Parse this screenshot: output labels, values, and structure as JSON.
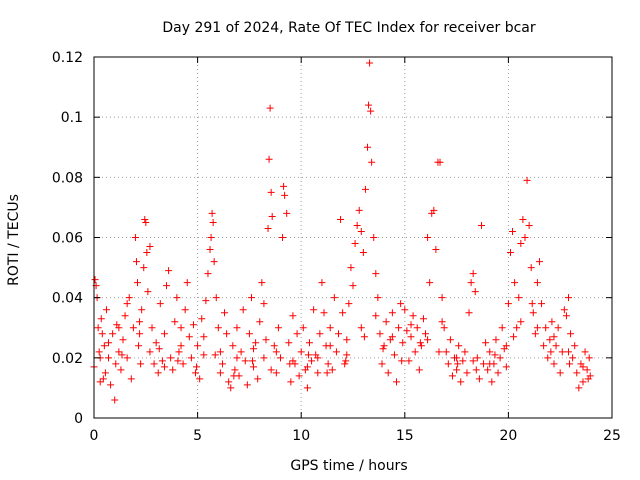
{
  "chart_data": {
    "type": "scatter",
    "title": "Day 291 of 2024, Rate Of TEC Index for receiver bcar",
    "xlabel": "GPS time / hours",
    "ylabel": "ROTI / TECUs",
    "xlim": [
      0,
      25
    ],
    "ylim": [
      0,
      0.12
    ],
    "xticks": [
      0,
      5,
      10,
      15,
      20,
      25
    ],
    "xtick_labels": [
      "0",
      "5",
      "10",
      "15",
      "20",
      "25"
    ],
    "yticks": [
      0,
      0.02,
      0.04,
      0.06,
      0.08,
      0.1,
      0.12
    ],
    "ytick_labels": [
      "0",
      "0.02",
      "0.04",
      "0.06",
      "0.08",
      "0.1",
      "0.12"
    ],
    "grid": true,
    "marker": "plus",
    "point_color": "#ff0000",
    "points": [
      [
        0.0,
        0.017
      ],
      [
        0.05,
        0.046
      ],
      [
        0.1,
        0.044
      ],
      [
        0.15,
        0.04
      ],
      [
        0.2,
        0.03
      ],
      [
        0.25,
        0.022
      ],
      [
        0.3,
        0.012
      ],
      [
        0.35,
        0.033
      ],
      [
        0.4,
        0.028
      ],
      [
        0.5,
        0.024
      ],
      [
        0.55,
        0.015
      ],
      [
        0.6,
        0.036
      ],
      [
        0.7,
        0.02
      ],
      [
        0.8,
        0.011
      ],
      [
        0.9,
        0.028
      ],
      [
        1.0,
        0.006
      ],
      [
        1.05,
        0.018
      ],
      [
        1.1,
        0.031
      ],
      [
        1.2,
        0.022
      ],
      [
        1.3,
        0.016
      ],
      [
        1.4,
        0.026
      ],
      [
        1.5,
        0.034
      ],
      [
        1.6,
        0.02
      ],
      [
        1.7,
        0.04
      ],
      [
        1.8,
        0.013
      ],
      [
        1.9,
        0.03
      ],
      [
        2.0,
        0.06
      ],
      [
        2.05,
        0.052
      ],
      [
        2.1,
        0.045
      ],
      [
        2.15,
        0.024
      ],
      [
        2.2,
        0.032
      ],
      [
        2.3,
        0.036
      ],
      [
        2.4,
        0.05
      ],
      [
        2.45,
        0.066
      ],
      [
        2.5,
        0.065
      ],
      [
        2.55,
        0.055
      ],
      [
        2.6,
        0.042
      ],
      [
        2.7,
        0.057
      ],
      [
        2.8,
        0.03
      ],
      [
        2.9,
        0.018
      ],
      [
        3.0,
        0.025
      ],
      [
        3.1,
        0.015
      ],
      [
        3.2,
        0.038
      ],
      [
        3.3,
        0.019
      ],
      [
        3.4,
        0.028
      ],
      [
        3.5,
        0.044
      ],
      [
        3.6,
        0.049
      ],
      [
        3.7,
        0.02
      ],
      [
        3.8,
        0.016
      ],
      [
        3.9,
        0.032
      ],
      [
        4.0,
        0.04
      ],
      [
        4.1,
        0.022
      ],
      [
        4.2,
        0.03
      ],
      [
        4.3,
        0.018
      ],
      [
        4.4,
        0.036
      ],
      [
        4.5,
        0.045
      ],
      [
        4.6,
        0.027
      ],
      [
        4.7,
        0.02
      ],
      [
        4.8,
        0.031
      ],
      [
        4.9,
        0.015
      ],
      [
        5.0,
        0.024
      ],
      [
        5.1,
        0.013
      ],
      [
        5.2,
        0.033
      ],
      [
        5.3,
        0.021
      ],
      [
        5.4,
        0.039
      ],
      [
        5.5,
        0.048
      ],
      [
        5.6,
        0.056
      ],
      [
        5.65,
        0.06
      ],
      [
        5.7,
        0.068
      ],
      [
        5.75,
        0.065
      ],
      [
        5.8,
        0.052
      ],
      [
        5.9,
        0.04
      ],
      [
        6.0,
        0.03
      ],
      [
        6.1,
        0.022
      ],
      [
        6.2,
        0.018
      ],
      [
        6.3,
        0.035
      ],
      [
        6.4,
        0.028
      ],
      [
        6.5,
        0.012
      ],
      [
        6.6,
        0.01
      ],
      [
        6.7,
        0.024
      ],
      [
        6.8,
        0.016
      ],
      [
        6.9,
        0.03
      ],
      [
        7.0,
        0.014
      ],
      [
        7.1,
        0.022
      ],
      [
        7.2,
        0.036
      ],
      [
        7.3,
        0.019
      ],
      [
        7.4,
        0.011
      ],
      [
        7.5,
        0.028
      ],
      [
        7.6,
        0.04
      ],
      [
        7.7,
        0.017
      ],
      [
        7.8,
        0.025
      ],
      [
        7.9,
        0.013
      ],
      [
        8.0,
        0.032
      ],
      [
        8.1,
        0.045
      ],
      [
        8.2,
        0.038
      ],
      [
        8.3,
        0.026
      ],
      [
        8.4,
        0.063
      ],
      [
        8.45,
        0.086
      ],
      [
        8.5,
        0.103
      ],
      [
        8.55,
        0.075
      ],
      [
        8.6,
        0.067
      ],
      [
        8.7,
        0.024
      ],
      [
        8.8,
        0.015
      ],
      [
        8.9,
        0.03
      ],
      [
        9.0,
        0.02
      ],
      [
        9.1,
        0.06
      ],
      [
        9.15,
        0.077
      ],
      [
        9.2,
        0.074
      ],
      [
        9.3,
        0.068
      ],
      [
        9.4,
        0.025
      ],
      [
        9.5,
        0.012
      ],
      [
        9.6,
        0.034
      ],
      [
        9.7,
        0.018
      ],
      [
        9.8,
        0.028
      ],
      [
        9.9,
        0.014
      ],
      [
        10.0,
        0.022
      ],
      [
        10.1,
        0.03
      ],
      [
        10.2,
        0.016
      ],
      [
        10.3,
        0.01
      ],
      [
        10.4,
        0.025
      ],
      [
        10.5,
        0.019
      ],
      [
        10.6,
        0.036
      ],
      [
        10.7,
        0.021
      ],
      [
        10.8,
        0.015
      ],
      [
        10.9,
        0.028
      ],
      [
        11.0,
        0.045
      ],
      [
        11.1,
        0.035
      ],
      [
        11.2,
        0.024
      ],
      [
        11.3,
        0.018
      ],
      [
        11.4,
        0.03
      ],
      [
        11.5,
        0.016
      ],
      [
        11.6,
        0.04
      ],
      [
        11.7,
        0.022
      ],
      [
        11.8,
        0.028
      ],
      [
        11.9,
        0.066
      ],
      [
        12.0,
        0.035
      ],
      [
        12.1,
        0.018
      ],
      [
        12.2,
        0.026
      ],
      [
        12.3,
        0.038
      ],
      [
        12.4,
        0.05
      ],
      [
        12.5,
        0.044
      ],
      [
        12.6,
        0.058
      ],
      [
        12.7,
        0.064
      ],
      [
        12.8,
        0.069
      ],
      [
        12.9,
        0.062
      ],
      [
        13.0,
        0.055
      ],
      [
        13.1,
        0.076
      ],
      [
        13.2,
        0.09
      ],
      [
        13.25,
        0.104
      ],
      [
        13.3,
        0.118
      ],
      [
        13.35,
        0.102
      ],
      [
        13.4,
        0.085
      ],
      [
        13.5,
        0.06
      ],
      [
        13.6,
        0.048
      ],
      [
        13.7,
        0.04
      ],
      [
        13.8,
        0.028
      ],
      [
        13.9,
        0.018
      ],
      [
        14.0,
        0.024
      ],
      [
        14.1,
        0.032
      ],
      [
        14.2,
        0.015
      ],
      [
        14.3,
        0.026
      ],
      [
        14.4,
        0.035
      ],
      [
        14.5,
        0.021
      ],
      [
        14.6,
        0.012
      ],
      [
        14.7,
        0.03
      ],
      [
        14.8,
        0.038
      ],
      [
        14.9,
        0.025
      ],
      [
        15.0,
        0.036
      ],
      [
        15.1,
        0.029
      ],
      [
        15.2,
        0.019
      ],
      [
        15.3,
        0.027
      ],
      [
        15.4,
        0.034
      ],
      [
        15.5,
        0.022
      ],
      [
        15.6,
        0.03
      ],
      [
        15.7,
        0.016
      ],
      [
        15.8,
        0.024
      ],
      [
        15.9,
        0.033
      ],
      [
        16.0,
        0.028
      ],
      [
        16.1,
        0.06
      ],
      [
        16.2,
        0.045
      ],
      [
        16.3,
        0.068
      ],
      [
        16.4,
        0.069
      ],
      [
        16.5,
        0.056
      ],
      [
        16.6,
        0.085
      ],
      [
        16.7,
        0.085
      ],
      [
        16.8,
        0.04
      ],
      [
        16.9,
        0.03
      ],
      [
        17.0,
        0.022
      ],
      [
        17.1,
        0.018
      ],
      [
        17.2,
        0.026
      ],
      [
        17.3,
        0.014
      ],
      [
        17.4,
        0.02
      ],
      [
        17.5,
        0.016
      ],
      [
        17.6,
        0.024
      ],
      [
        17.7,
        0.012
      ],
      [
        17.8,
        0.019
      ],
      [
        17.9,
        0.022
      ],
      [
        18.0,
        0.015
      ],
      [
        18.1,
        0.035
      ],
      [
        18.2,
        0.045
      ],
      [
        18.3,
        0.048
      ],
      [
        18.4,
        0.042
      ],
      [
        18.5,
        0.02
      ],
      [
        18.6,
        0.013
      ],
      [
        18.7,
        0.064
      ],
      [
        18.8,
        0.018
      ],
      [
        18.9,
        0.025
      ],
      [
        19.0,
        0.016
      ],
      [
        19.1,
        0.022
      ],
      [
        19.2,
        0.012
      ],
      [
        19.3,
        0.018
      ],
      [
        19.4,
        0.026
      ],
      [
        19.5,
        0.015
      ],
      [
        19.6,
        0.02
      ],
      [
        19.7,
        0.03
      ],
      [
        19.8,
        0.023
      ],
      [
        19.9,
        0.017
      ],
      [
        20.0,
        0.038
      ],
      [
        20.1,
        0.055
      ],
      [
        20.2,
        0.062
      ],
      [
        20.3,
        0.045
      ],
      [
        20.4,
        0.03
      ],
      [
        20.5,
        0.04
      ],
      [
        20.6,
        0.058
      ],
      [
        20.7,
        0.066
      ],
      [
        20.8,
        0.06
      ],
      [
        20.9,
        0.079
      ],
      [
        21.0,
        0.064
      ],
      [
        21.1,
        0.05
      ],
      [
        21.2,
        0.035
      ],
      [
        21.3,
        0.028
      ],
      [
        21.4,
        0.045
      ],
      [
        21.5,
        0.052
      ],
      [
        21.6,
        0.038
      ],
      [
        21.7,
        0.024
      ],
      [
        21.8,
        0.03
      ],
      [
        21.9,
        0.02
      ],
      [
        22.0,
        0.026
      ],
      [
        22.1,
        0.032
      ],
      [
        22.2,
        0.018
      ],
      [
        22.3,
        0.024
      ],
      [
        22.4,
        0.03
      ],
      [
        22.5,
        0.015
      ],
      [
        22.6,
        0.022
      ],
      [
        22.7,
        0.036
      ],
      [
        22.8,
        0.034
      ],
      [
        22.9,
        0.04
      ],
      [
        23.0,
        0.028
      ],
      [
        23.1,
        0.02
      ],
      [
        23.2,
        0.024
      ],
      [
        23.3,
        0.015
      ],
      [
        23.4,
        0.01
      ],
      [
        23.5,
        0.018
      ],
      [
        23.6,
        0.012
      ],
      [
        23.7,
        0.022
      ],
      [
        23.8,
        0.016
      ],
      [
        23.9,
        0.02
      ],
      [
        23.95,
        0.014
      ],
      [
        0.3,
        0.02
      ],
      [
        0.7,
        0.025
      ],
      [
        1.2,
        0.03
      ],
      [
        1.6,
        0.038
      ],
      [
        2.2,
        0.028
      ],
      [
        2.7,
        0.022
      ],
      [
        3.4,
        0.017
      ],
      [
        4.2,
        0.024
      ],
      [
        5.3,
        0.027
      ],
      [
        6.1,
        0.015
      ],
      [
        6.9,
        0.02
      ],
      [
        7.7,
        0.023
      ],
      [
        8.2,
        0.02
      ],
      [
        8.8,
        0.022
      ],
      [
        9.6,
        0.019
      ],
      [
        10.3,
        0.017
      ],
      [
        10.8,
        0.02
      ],
      [
        11.4,
        0.024
      ],
      [
        12.2,
        0.021
      ],
      [
        12.9,
        0.03
      ],
      [
        13.6,
        0.034
      ],
      [
        14.4,
        0.027
      ],
      [
        15.3,
        0.031
      ],
      [
        16.1,
        0.026
      ],
      [
        16.8,
        0.032
      ],
      [
        17.5,
        0.02
      ],
      [
        18.3,
        0.019
      ],
      [
        19.1,
        0.018
      ],
      [
        19.9,
        0.024
      ],
      [
        20.6,
        0.032
      ],
      [
        21.4,
        0.03
      ],
      [
        22.2,
        0.027
      ],
      [
        22.9,
        0.022
      ],
      [
        23.6,
        0.017
      ],
      [
        0.45,
        0.013
      ],
      [
        1.35,
        0.021
      ],
      [
        2.25,
        0.018
      ],
      [
        3.15,
        0.023
      ],
      [
        4.05,
        0.019
      ],
      [
        4.95,
        0.017
      ],
      [
        5.85,
        0.021
      ],
      [
        6.75,
        0.014
      ],
      [
        7.65,
        0.019
      ],
      [
        8.55,
        0.016
      ],
      [
        9.45,
        0.018
      ],
      [
        10.35,
        0.021
      ],
      [
        11.25,
        0.015
      ],
      [
        12.15,
        0.019
      ],
      [
        13.05,
        0.027
      ],
      [
        13.95,
        0.023
      ],
      [
        14.85,
        0.019
      ],
      [
        15.75,
        0.025
      ],
      [
        16.65,
        0.022
      ],
      [
        17.55,
        0.018
      ],
      [
        18.45,
        0.016
      ],
      [
        19.35,
        0.021
      ],
      [
        20.25,
        0.027
      ],
      [
        21.15,
        0.038
      ],
      [
        22.05,
        0.022
      ],
      [
        22.95,
        0.018
      ],
      [
        23.85,
        0.013
      ]
    ]
  }
}
